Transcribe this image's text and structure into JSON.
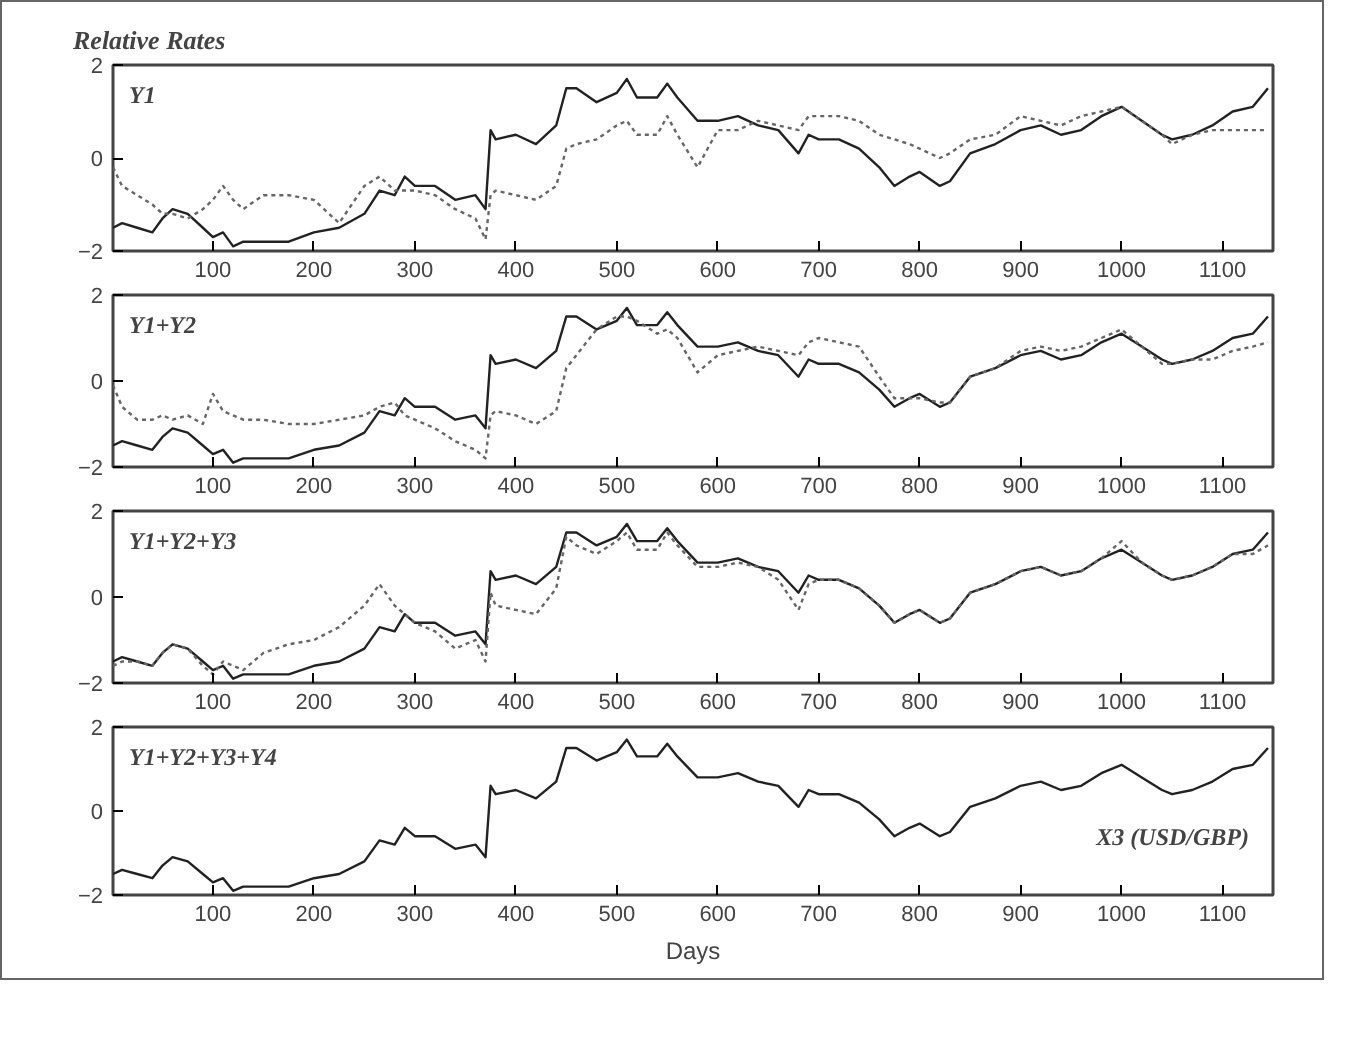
{
  "chart_data": [
    {
      "type": "line",
      "title": "Relative Rates",
      "annotations": [
        "Y1"
      ],
      "xlim": [
        1,
        1150
      ],
      "ylim": [
        -2,
        2
      ],
      "xticks": [
        100,
        200,
        300,
        400,
        500,
        600,
        700,
        800,
        900,
        1000,
        1100
      ],
      "yticks": [
        -2,
        0,
        2
      ],
      "x": [
        1,
        10,
        25,
        40,
        50,
        60,
        75,
        90,
        100,
        110,
        120,
        130,
        150,
        175,
        200,
        225,
        250,
        265,
        280,
        290,
        300,
        320,
        340,
        360,
        370,
        375,
        380,
        400,
        420,
        440,
        450,
        460,
        480,
        500,
        510,
        520,
        540,
        550,
        560,
        580,
        600,
        620,
        640,
        660,
        680,
        690,
        700,
        720,
        740,
        760,
        775,
        790,
        800,
        820,
        830,
        850,
        875,
        900,
        920,
        940,
        960,
        980,
        1000,
        1020,
        1040,
        1050,
        1070,
        1090,
        1110,
        1130,
        1145
      ],
      "series": [
        {
          "color": "#222222",
          "line_style": "solid",
          "values": [
            -1.5,
            -1.4,
            -1.5,
            -1.6,
            -1.3,
            -1.1,
            -1.2,
            -1.5,
            -1.7,
            -1.6,
            -1.9,
            -1.8,
            -1.8,
            -1.8,
            -1.6,
            -1.5,
            -1.2,
            -0.7,
            -0.8,
            -0.4,
            -0.6,
            -0.6,
            -0.9,
            -0.8,
            -1.1,
            0.6,
            0.4,
            0.5,
            0.3,
            0.7,
            1.5,
            1.5,
            1.2,
            1.4,
            1.7,
            1.3,
            1.3,
            1.6,
            1.3,
            0.8,
            0.8,
            0.9,
            0.7,
            0.6,
            0.1,
            0.5,
            0.4,
            0.4,
            0.2,
            -0.2,
            -0.6,
            -0.4,
            -0.3,
            -0.6,
            -0.5,
            0.1,
            0.3,
            0.6,
            0.7,
            0.5,
            0.6,
            0.9,
            1.1,
            0.8,
            0.5,
            0.4,
            0.5,
            0.7,
            1.0,
            1.1,
            1.5
          ]
        },
        {
          "color": "#666666",
          "line_style": "dotted",
          "values": [
            -0.2,
            -0.6,
            -0.8,
            -1.0,
            -1.2,
            -1.2,
            -1.3,
            -1.1,
            -0.9,
            -0.6,
            -0.9,
            -1.1,
            -0.8,
            -0.8,
            -0.9,
            -1.4,
            -0.6,
            -0.4,
            -0.7,
            -0.7,
            -0.7,
            -0.8,
            -1.1,
            -1.3,
            -1.75,
            -0.8,
            -0.7,
            -0.8,
            -0.9,
            -0.6,
            0.2,
            0.3,
            0.4,
            0.7,
            0.8,
            0.5,
            0.5,
            0.9,
            0.5,
            -0.2,
            0.6,
            0.6,
            0.8,
            0.7,
            0.6,
            0.9,
            0.9,
            0.9,
            0.8,
            0.5,
            0.4,
            0.3,
            0.2,
            0.0,
            0.1,
            0.4,
            0.5,
            0.9,
            0.8,
            0.7,
            0.9,
            1.0,
            1.1,
            0.8,
            0.5,
            0.3,
            0.5,
            0.6,
            0.6,
            0.6,
            0.6
          ]
        }
      ]
    },
    {
      "type": "line",
      "annotations": [
        "Y1+Y2"
      ],
      "xlim": [
        1,
        1150
      ],
      "ylim": [
        -2,
        2
      ],
      "xticks": [
        100,
        200,
        300,
        400,
        500,
        600,
        700,
        800,
        900,
        1000,
        1100
      ],
      "yticks": [
        -2,
        0,
        2
      ],
      "x": [
        1,
        10,
        25,
        40,
        50,
        60,
        75,
        90,
        100,
        110,
        120,
        130,
        150,
        175,
        200,
        225,
        250,
        265,
        280,
        290,
        300,
        320,
        340,
        360,
        370,
        375,
        380,
        400,
        420,
        440,
        450,
        460,
        480,
        500,
        510,
        520,
        540,
        550,
        560,
        580,
        600,
        620,
        640,
        660,
        680,
        690,
        700,
        720,
        740,
        760,
        775,
        790,
        800,
        820,
        830,
        850,
        875,
        900,
        920,
        940,
        960,
        980,
        1000,
        1020,
        1040,
        1050,
        1070,
        1090,
        1110,
        1130,
        1145
      ],
      "series": [
        {
          "color": "#222222",
          "line_style": "solid",
          "values": [
            -1.5,
            -1.4,
            -1.5,
            -1.6,
            -1.3,
            -1.1,
            -1.2,
            -1.5,
            -1.7,
            -1.6,
            -1.9,
            -1.8,
            -1.8,
            -1.8,
            -1.6,
            -1.5,
            -1.2,
            -0.7,
            -0.8,
            -0.4,
            -0.6,
            -0.6,
            -0.9,
            -0.8,
            -1.1,
            0.6,
            0.4,
            0.5,
            0.3,
            0.7,
            1.5,
            1.5,
            1.2,
            1.4,
            1.7,
            1.3,
            1.3,
            1.6,
            1.3,
            0.8,
            0.8,
            0.9,
            0.7,
            0.6,
            0.1,
            0.5,
            0.4,
            0.4,
            0.2,
            -0.2,
            -0.6,
            -0.4,
            -0.3,
            -0.6,
            -0.5,
            0.1,
            0.3,
            0.6,
            0.7,
            0.5,
            0.6,
            0.9,
            1.1,
            0.8,
            0.5,
            0.4,
            0.5,
            0.7,
            1.0,
            1.1,
            1.5
          ]
        },
        {
          "color": "#666666",
          "line_style": "dotted",
          "values": [
            -0.1,
            -0.6,
            -0.9,
            -0.9,
            -0.8,
            -0.9,
            -0.8,
            -1.0,
            -0.3,
            -0.7,
            -0.8,
            -0.9,
            -0.9,
            -1.0,
            -1.0,
            -0.9,
            -0.8,
            -0.6,
            -0.5,
            -0.8,
            -0.9,
            -1.1,
            -1.4,
            -1.6,
            -1.8,
            -0.8,
            -0.7,
            -0.8,
            -1.0,
            -0.7,
            0.3,
            0.6,
            1.2,
            1.5,
            1.5,
            1.4,
            1.1,
            1.2,
            1.0,
            0.2,
            0.6,
            0.7,
            0.8,
            0.7,
            0.6,
            0.9,
            1.0,
            0.9,
            0.8,
            0.1,
            -0.4,
            -0.4,
            -0.4,
            -0.5,
            -0.5,
            0.1,
            0.3,
            0.7,
            0.8,
            0.7,
            0.8,
            1.0,
            1.2,
            0.8,
            0.4,
            0.4,
            0.5,
            0.5,
            0.7,
            0.8,
            0.9
          ]
        }
      ]
    },
    {
      "type": "line",
      "annotations": [
        "Y1+Y2+Y3"
      ],
      "xlim": [
        1,
        1150
      ],
      "ylim": [
        -2,
        2
      ],
      "xticks": [
        100,
        200,
        300,
        400,
        500,
        600,
        700,
        800,
        900,
        1000,
        1100
      ],
      "yticks": [
        -2,
        0,
        2
      ],
      "x": [
        1,
        10,
        25,
        40,
        50,
        60,
        75,
        90,
        100,
        110,
        120,
        130,
        150,
        175,
        200,
        225,
        250,
        265,
        280,
        290,
        300,
        320,
        340,
        360,
        370,
        375,
        380,
        400,
        420,
        440,
        450,
        460,
        480,
        500,
        510,
        520,
        540,
        550,
        560,
        580,
        600,
        620,
        640,
        660,
        680,
        690,
        700,
        720,
        740,
        760,
        775,
        790,
        800,
        820,
        830,
        850,
        875,
        900,
        920,
        940,
        960,
        980,
        1000,
        1020,
        1040,
        1050,
        1070,
        1090,
        1110,
        1130,
        1145
      ],
      "series": [
        {
          "color": "#222222",
          "line_style": "solid",
          "values": [
            -1.5,
            -1.4,
            -1.5,
            -1.6,
            -1.3,
            -1.1,
            -1.2,
            -1.5,
            -1.7,
            -1.6,
            -1.9,
            -1.8,
            -1.8,
            -1.8,
            -1.6,
            -1.5,
            -1.2,
            -0.7,
            -0.8,
            -0.4,
            -0.6,
            -0.6,
            -0.9,
            -0.8,
            -1.1,
            0.6,
            0.4,
            0.5,
            0.3,
            0.7,
            1.5,
            1.5,
            1.2,
            1.4,
            1.7,
            1.3,
            1.3,
            1.6,
            1.3,
            0.8,
            0.8,
            0.9,
            0.7,
            0.6,
            0.1,
            0.5,
            0.4,
            0.4,
            0.2,
            -0.2,
            -0.6,
            -0.4,
            -0.3,
            -0.6,
            -0.5,
            0.1,
            0.3,
            0.6,
            0.7,
            0.5,
            0.6,
            0.9,
            1.1,
            0.8,
            0.5,
            0.4,
            0.5,
            0.7,
            1.0,
            1.1,
            1.5
          ]
        },
        {
          "color": "#666666",
          "line_style": "dotted",
          "values": [
            -1.6,
            -1.5,
            -1.5,
            -1.6,
            -1.3,
            -1.1,
            -1.2,
            -1.6,
            -1.8,
            -1.5,
            -1.6,
            -1.7,
            -1.3,
            -1.1,
            -1.0,
            -0.7,
            -0.2,
            0.3,
            -0.2,
            -0.4,
            -0.6,
            -0.8,
            -1.2,
            -1.0,
            -1.5,
            0.1,
            -0.2,
            -0.3,
            -0.4,
            0.2,
            1.4,
            1.2,
            1.0,
            1.3,
            1.5,
            1.1,
            1.1,
            1.5,
            1.2,
            0.7,
            0.7,
            0.8,
            0.7,
            0.4,
            -0.3,
            0.3,
            0.4,
            0.4,
            0.2,
            -0.2,
            -0.6,
            -0.4,
            -0.3,
            -0.6,
            -0.5,
            0.1,
            0.3,
            0.6,
            0.7,
            0.5,
            0.6,
            0.9,
            1.3,
            0.8,
            0.5,
            0.4,
            0.5,
            0.7,
            1.0,
            1.0,
            1.2
          ]
        }
      ]
    },
    {
      "type": "line",
      "xlabel": "Days",
      "annotations": [
        "Y1+Y2+Y3+Y4",
        "X3 (USD/GBP)"
      ],
      "xlim": [
        1,
        1150
      ],
      "ylim": [
        -2,
        2
      ],
      "xticks": [
        100,
        200,
        300,
        400,
        500,
        600,
        700,
        800,
        900,
        1000,
        1100
      ],
      "yticks": [
        -2,
        0,
        2
      ],
      "x": [
        1,
        10,
        25,
        40,
        50,
        60,
        75,
        90,
        100,
        110,
        120,
        130,
        150,
        175,
        200,
        225,
        250,
        265,
        280,
        290,
        300,
        320,
        340,
        360,
        370,
        375,
        380,
        400,
        420,
        440,
        450,
        460,
        480,
        500,
        510,
        520,
        540,
        550,
        560,
        580,
        600,
        620,
        640,
        660,
        680,
        690,
        700,
        720,
        740,
        760,
        775,
        790,
        800,
        820,
        830,
        850,
        875,
        900,
        920,
        940,
        960,
        980,
        1000,
        1020,
        1040,
        1050,
        1070,
        1090,
        1110,
        1130,
        1145
      ],
      "series": [
        {
          "color": "#222222",
          "line_style": "solid",
          "values": [
            -1.5,
            -1.4,
            -1.5,
            -1.6,
            -1.3,
            -1.1,
            -1.2,
            -1.5,
            -1.7,
            -1.6,
            -1.9,
            -1.8,
            -1.8,
            -1.8,
            -1.6,
            -1.5,
            -1.2,
            -0.7,
            -0.8,
            -0.4,
            -0.6,
            -0.6,
            -0.9,
            -0.8,
            -1.1,
            0.6,
            0.4,
            0.5,
            0.3,
            0.7,
            1.5,
            1.5,
            1.2,
            1.4,
            1.7,
            1.3,
            1.3,
            1.6,
            1.3,
            0.8,
            0.8,
            0.9,
            0.7,
            0.6,
            0.1,
            0.5,
            0.4,
            0.4,
            0.2,
            -0.2,
            -0.6,
            -0.4,
            -0.3,
            -0.6,
            -0.5,
            0.1,
            0.3,
            0.6,
            0.7,
            0.5,
            0.6,
            0.9,
            1.1,
            0.8,
            0.5,
            0.4,
            0.5,
            0.7,
            1.0,
            1.1,
            1.5
          ]
        }
      ]
    }
  ]
}
